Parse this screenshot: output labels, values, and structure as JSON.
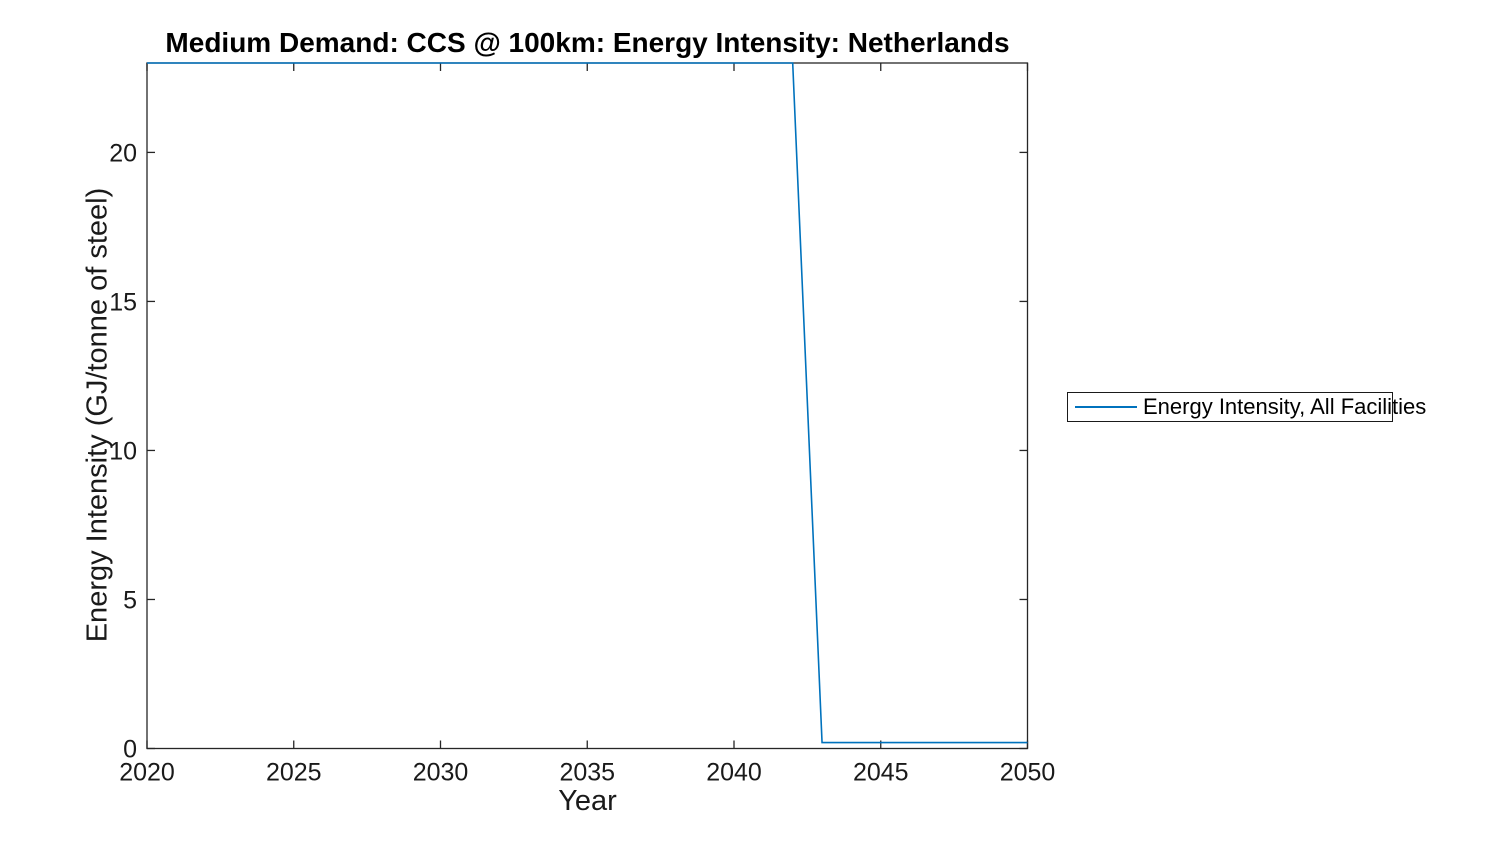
{
  "chart_data": {
    "type": "line",
    "title": "Medium Demand: CCS @ 100km: Energy Intensity: Netherlands",
    "xlabel": "Year",
    "ylabel": "Energy Intensity (GJ/tonne of steel)",
    "xlim": [
      2020,
      2050
    ],
    "ylim": [
      0,
      23
    ],
    "xticks": [
      2020,
      2025,
      2030,
      2035,
      2040,
      2045,
      2050
    ],
    "yticks": [
      0,
      5,
      10,
      15,
      20
    ],
    "grid": false,
    "legend_position": "outside-right",
    "series": [
      {
        "name": "Energy Intensity, All Facilities",
        "color": "#0072BD",
        "x": [
          2020,
          2042,
          2043,
          2050
        ],
        "y": [
          23,
          23,
          0.2,
          0.2
        ]
      }
    ]
  },
  "colors": {
    "line": "#0072BD",
    "axis": "#262626",
    "tick_text": "#1a1a1a",
    "background": "#ffffff"
  }
}
